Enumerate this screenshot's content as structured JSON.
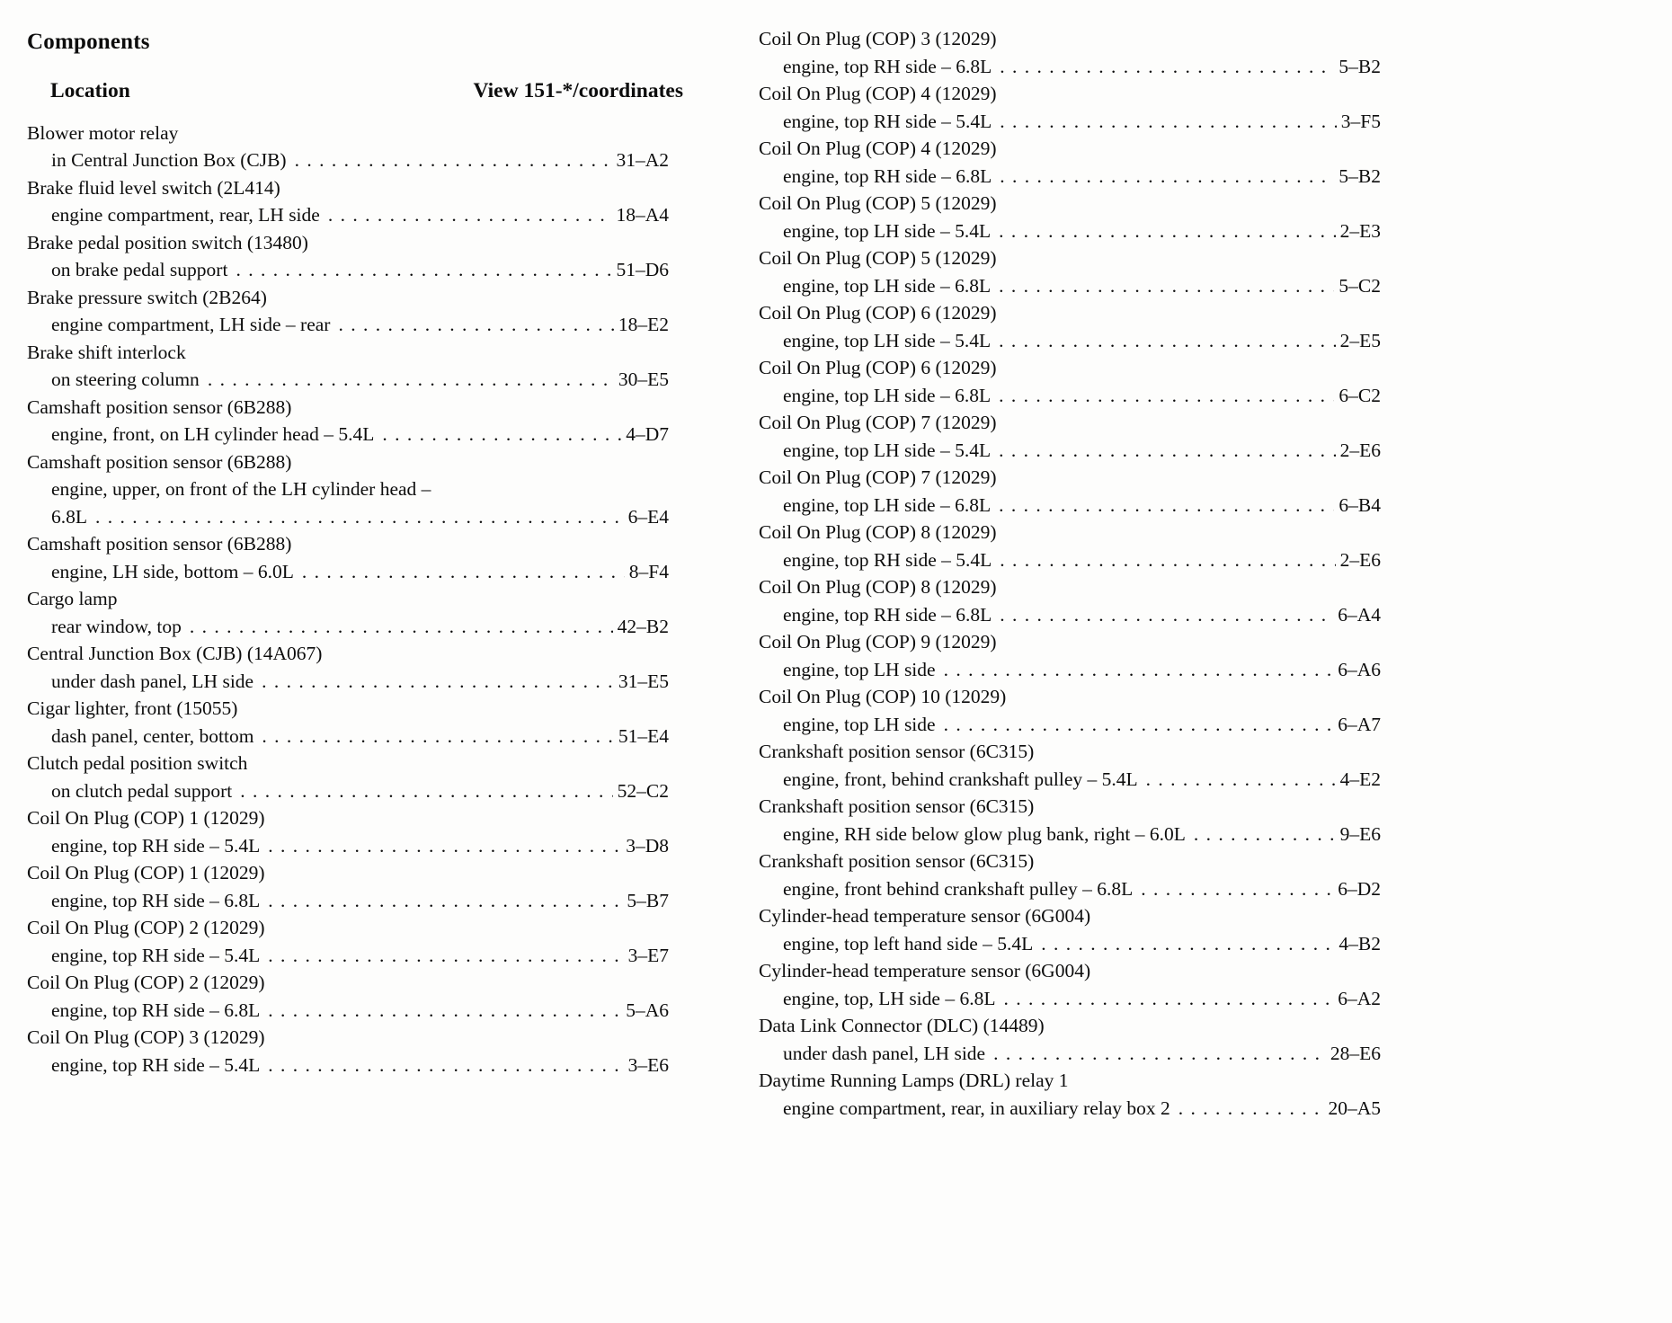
{
  "page": {
    "title": "Components",
    "header": {
      "location_label": "Location",
      "view_label": "View 151-*/coordinates"
    }
  },
  "columns": [
    {
      "entries": [
        {
          "name": "Blower motor relay",
          "lines": [
            {
              "text": "in Central Junction Box (CJB)",
              "coord": "31–A2"
            }
          ]
        },
        {
          "name": "Brake fluid level switch (2L414)",
          "lines": [
            {
              "text": "engine compartment, rear, LH side",
              "coord": "18–A4"
            }
          ]
        },
        {
          "name": "Brake pedal position switch (13480)",
          "lines": [
            {
              "text": "on brake pedal support",
              "coord": "51–D6"
            }
          ]
        },
        {
          "name": "Brake pressure switch (2B264)",
          "lines": [
            {
              "text": "engine compartment, LH side – rear",
              "coord": "18–E2"
            }
          ]
        },
        {
          "name": "Brake shift interlock",
          "lines": [
            {
              "text": "on steering column",
              "coord": "30–E5"
            }
          ]
        },
        {
          "name": "Camshaft position sensor (6B288)",
          "lines": [
            {
              "text": "engine, front, on LH cylinder head – 5.4L",
              "coord": "4–D7"
            }
          ]
        },
        {
          "name": "Camshaft position sensor (6B288)",
          "lines": [
            {
              "text": "engine, upper, on front of the LH cylinder head –"
            },
            {
              "text": "6.8L",
              "coord": "6–E4"
            }
          ]
        },
        {
          "name": "Camshaft position sensor (6B288)",
          "lines": [
            {
              "text": "engine, LH side, bottom – 6.0L",
              "coord": "8–F4"
            }
          ]
        },
        {
          "name": "Cargo lamp",
          "lines": [
            {
              "text": "rear window, top",
              "coord": "42–B2"
            }
          ]
        },
        {
          "name": "Central Junction Box (CJB) (14A067)",
          "lines": [
            {
              "text": "under dash panel, LH side",
              "coord": "31–E5"
            }
          ]
        },
        {
          "name": "Cigar lighter, front (15055)",
          "lines": [
            {
              "text": "dash panel, center, bottom",
              "coord": "51–E4"
            }
          ]
        },
        {
          "name": "Clutch pedal position switch",
          "lines": [
            {
              "text": "on clutch pedal support",
              "coord": "52–C2"
            }
          ]
        },
        {
          "name": "Coil On Plug (COP) 1 (12029)",
          "lines": [
            {
              "text": "engine, top RH side – 5.4L",
              "coord": "3–D8"
            }
          ]
        },
        {
          "name": "Coil On Plug (COP) 1 (12029)",
          "lines": [
            {
              "text": "engine, top RH side – 6.8L",
              "coord": "5–B7"
            }
          ]
        },
        {
          "name": "Coil On Plug (COP) 2 (12029)",
          "lines": [
            {
              "text": "engine, top RH side – 5.4L",
              "coord": "3–E7"
            }
          ]
        },
        {
          "name": "Coil On Plug (COP) 2 (12029)",
          "lines": [
            {
              "text": "engine, top RH side – 6.8L",
              "coord": "5–A6"
            }
          ]
        },
        {
          "name": "Coil On Plug (COP) 3 (12029)",
          "lines": [
            {
              "text": "engine, top RH side – 5.4L",
              "coord": "3–E6"
            }
          ]
        }
      ]
    },
    {
      "entries": [
        {
          "name": "Coil On Plug (COP) 3 (12029)",
          "lines": [
            {
              "text": "engine, top RH side – 6.8L",
              "coord": "5–B2"
            }
          ]
        },
        {
          "name": "Coil On Plug (COP) 4 (12029)",
          "lines": [
            {
              "text": "engine, top RH side – 5.4L",
              "coord": "3–F5"
            }
          ]
        },
        {
          "name": "Coil On Plug (COP) 4 (12029)",
          "lines": [
            {
              "text": "engine, top RH side – 6.8L",
              "coord": "5–B2"
            }
          ]
        },
        {
          "name": "Coil On Plug (COP) 5 (12029)",
          "lines": [
            {
              "text": "engine, top LH side – 5.4L",
              "coord": "2–E3"
            }
          ]
        },
        {
          "name": "Coil On Plug (COP) 5 (12029)",
          "lines": [
            {
              "text": "engine, top LH side – 6.8L",
              "coord": "5–C2"
            }
          ]
        },
        {
          "name": "Coil On Plug (COP) 6 (12029)",
          "lines": [
            {
              "text": "engine, top LH side – 5.4L",
              "coord": "2–E5"
            }
          ]
        },
        {
          "name": "Coil On Plug (COP) 6 (12029)",
          "lines": [
            {
              "text": "engine, top LH side – 6.8L",
              "coord": "6–C2"
            }
          ]
        },
        {
          "name": "Coil On Plug (COP) 7 (12029)",
          "lines": [
            {
              "text": "engine, top LH side – 5.4L",
              "coord": "2–E6"
            }
          ]
        },
        {
          "name": "Coil On Plug (COP) 7 (12029)",
          "lines": [
            {
              "text": "engine, top LH side – 6.8L",
              "coord": "6–B4"
            }
          ]
        },
        {
          "name": "Coil On Plug (COP) 8 (12029)",
          "lines": [
            {
              "text": "engine, top RH side – 5.4L",
              "coord": "2–E6"
            }
          ]
        },
        {
          "name": "Coil On Plug (COP) 8 (12029)",
          "lines": [
            {
              "text": "engine, top RH side – 6.8L",
              "coord": "6–A4"
            }
          ]
        },
        {
          "name": "Coil On Plug (COP) 9 (12029)",
          "lines": [
            {
              "text": "engine, top LH side",
              "coord": "6–A6"
            }
          ]
        },
        {
          "name": "Coil On Plug (COP) 10 (12029)",
          "lines": [
            {
              "text": "engine, top LH side",
              "coord": "6–A7"
            }
          ]
        },
        {
          "name": "Crankshaft position sensor (6C315)",
          "lines": [
            {
              "text": "engine, front, behind crankshaft pulley – 5.4L",
              "coord": "4–E2"
            }
          ]
        },
        {
          "name": "Crankshaft position sensor (6C315)",
          "lines": [
            {
              "text": "engine, RH side below glow plug bank, right – 6.0L",
              "coord": "9–E6"
            }
          ]
        },
        {
          "name": "Crankshaft position sensor (6C315)",
          "lines": [
            {
              "text": "engine, front behind crankshaft pulley – 6.8L",
              "coord": "6–D2"
            }
          ]
        },
        {
          "name": "Cylinder-head temperature sensor (6G004)",
          "lines": [
            {
              "text": "engine, top left hand side – 5.4L",
              "coord": "4–B2"
            }
          ]
        },
        {
          "name": "Cylinder-head temperature sensor (6G004)",
          "lines": [
            {
              "text": "engine, top, LH side – 6.8L",
              "coord": "6–A2"
            }
          ]
        },
        {
          "name": "Data Link Connector (DLC) (14489)",
          "lines": [
            {
              "text": "under dash panel, LH side",
              "coord": "28–E6"
            }
          ]
        },
        {
          "name": "Daytime Running Lamps (DRL) relay 1",
          "lines": [
            {
              "text": "engine compartment, rear, in auxiliary relay box 2",
              "coord": "20–A5"
            }
          ]
        }
      ]
    }
  ]
}
